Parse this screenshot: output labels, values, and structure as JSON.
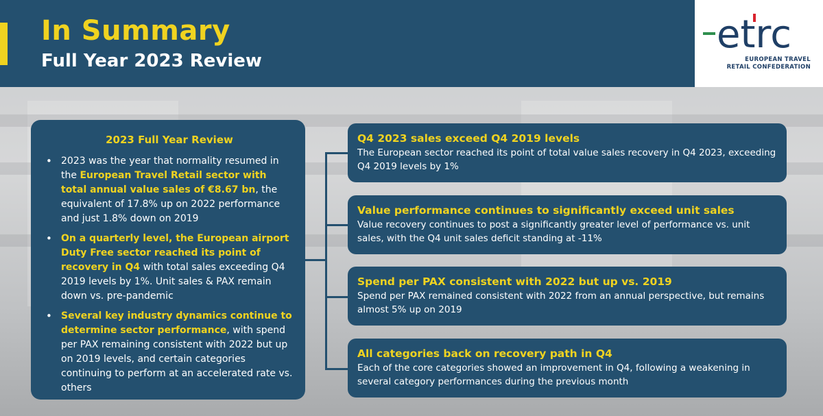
{
  "header": {
    "title": "In Summary",
    "subtitle": "Full Year 2023 Review"
  },
  "logo": {
    "wordmark": "etrc",
    "tagline_line1": "EUROPEAN TRAVEL",
    "tagline_line2": "RETAIL CONFEDERATION"
  },
  "left_panel": {
    "heading": "2023 Full Year Review",
    "bullet1": {
      "t1": "2023 was the year that normality resumed in the ",
      "h1": "European Travel Retail sector with total annual value sales of €8.67 bn",
      "t2": ", the equivalent of 17.8% up on 2022 performance and just 1.8% down on 2019"
    },
    "bullet2": {
      "h1": "On a quarterly level, the European airport Duty Free sector reached its point of recovery in Q4",
      "t1": " with total sales exceeding Q4 2019 levels by 1%.  Unit sales & PAX remain down vs. pre-pandemic"
    },
    "bullet3": {
      "h1": "Several key industry dynamics continue to determine sector performance",
      "t1": ", with spend per PAX remaining consistent with 2022 but up on 2019 levels, and certain categories continuing to perform at an accelerated rate vs. others"
    }
  },
  "cards": [
    {
      "title": "Q4 2023 sales exceed Q4 2019 levels",
      "body": "The European sector reached its point of total value sales recovery in Q4 2023, exceeding Q4 2019 levels by 1%"
    },
    {
      "title": "Value performance continues to significantly exceed unit sales",
      "body": "Value recovery continues to post a significantly greater level of performance vs. unit sales, with the Q4 unit sales deficit standing at -11%"
    },
    {
      "title": "Spend per PAX consistent with 2022 but up vs. 2019",
      "body": "Spend per PAX remained consistent with 2022 from an annual perspective, but remains almost 5% up on 2019"
    },
    {
      "title": "All categories back on recovery path in Q4",
      "body": "Each of the core categories showed an improvement in Q4, following a weakening in several category performances during the previous month"
    }
  ],
  "colors": {
    "navy": "#24506f",
    "accent_yellow": "#f0d320",
    "logo_blue": "#1f3f66",
    "logo_green": "#2f8f4e",
    "logo_red": "#d9232e"
  }
}
